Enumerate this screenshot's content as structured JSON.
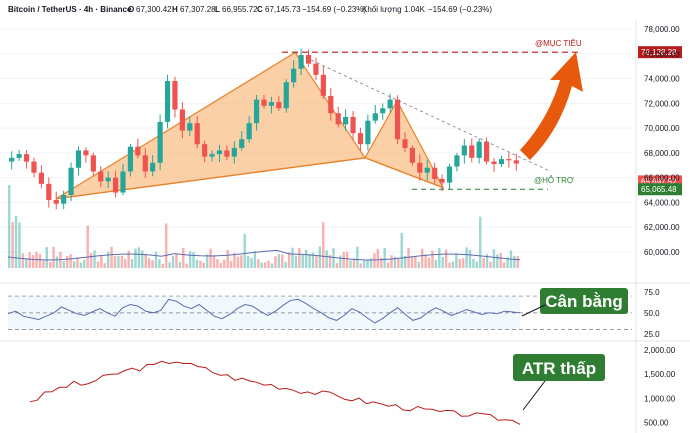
{
  "header": {
    "symbol": "Bitcoin / TetherUS · 4h · Binance",
    "o_label": "O",
    "o_value": "67,300.42",
    "h_label": "H",
    "h_value": "67,307.28",
    "l_label": "L",
    "l_value": "66,955.72",
    "c_label": "C",
    "c_value": "67,145.73",
    "change": "−154.69 (−0.23%)",
    "volume_label": "Khối lượng",
    "volume_value": "1.04K",
    "volume_change": "−154.69 (−0.23%)"
  },
  "colors": {
    "up": "#26a69a",
    "down": "#ef5350",
    "pattern_fill": "#f7a95c",
    "pattern_stroke": "#e8822a",
    "target": "#b71c1c",
    "support": "#2e7d32",
    "arrow": "#e65100",
    "badge": "#2e7d32",
    "rsi_line": "#5b6bb0",
    "atr_line": "#b71c1c",
    "volume_ma": "#5b6bb0"
  },
  "chart_data": [
    {
      "type": "candlestick",
      "panel": "price",
      "ylim": [
        58500,
        78000
      ],
      "y_ticks": [
        "78,000.00",
        "76,000.00",
        "74,000.00",
        "72,000.00",
        "70,000.00",
        "68,000.00",
        "66,000.00",
        "64,000.00",
        "62,000.00",
        "60,000.00"
      ],
      "last_price_labels": [
        "65,697.52",
        "65,065.48"
      ],
      "close_path": [
        67600,
        67900,
        67300,
        66400,
        65500,
        64200,
        63900,
        64600,
        66800,
        68200,
        67800,
        66500,
        65700,
        66000,
        64800,
        66500,
        68500,
        67800,
        66500,
        67200,
        70500,
        73800,
        71500,
        69800,
        70400,
        68700,
        67700,
        67900,
        68200,
        67700,
        68400,
        69100,
        70400,
        72300,
        71800,
        72100,
        71600,
        73700,
        74800,
        75900,
        75200,
        74300,
        72600,
        71200,
        70300,
        70900,
        69600,
        68700,
        70600,
        71200,
        71600,
        72300,
        69100,
        68400,
        67200,
        66400,
        66800,
        65900,
        65600,
        66900,
        67800,
        68600,
        67600,
        68900,
        67300,
        67100,
        67500,
        67400,
        67145
      ],
      "pattern_points": {
        "X": [
          56,
          64300
        ],
        "A": [
          295,
          76100
        ],
        "B": [
          365,
          67600
        ],
        "C": [
          397,
          72200
        ],
        "D": [
          443,
          65200
        ]
      },
      "target_label": "@MỤC TIÊU",
      "target_value": "76,128.28",
      "support_label": "@HỖ TRỢ",
      "support_value": 65065.48
    },
    {
      "type": "bar",
      "panel": "volume",
      "description_series": "volume"
    },
    {
      "type": "line",
      "panel": "rsi",
      "ylim": [
        20,
        82
      ],
      "y_ticks": [
        "75.0",
        "50.0",
        "25.0"
      ],
      "levels": [
        70,
        50,
        30
      ],
      "badge": "Cân bằng",
      "values": [
        49,
        52,
        46,
        44,
        42,
        46,
        50,
        57,
        53,
        49,
        47,
        51,
        55,
        50,
        46,
        56,
        60,
        58,
        52,
        50,
        53,
        66,
        64,
        58,
        55,
        60,
        53,
        46,
        43,
        48,
        55,
        60,
        58,
        52,
        47,
        52,
        59,
        65,
        66,
        61,
        55,
        50,
        44,
        41,
        47,
        55,
        51,
        44,
        38,
        43,
        50,
        56,
        48,
        41,
        44,
        51,
        56,
        52,
        47,
        50,
        54,
        51,
        48,
        50,
        49,
        52,
        51,
        50
      ]
    },
    {
      "type": "line",
      "panel": "atr",
      "ylim": [
        350,
        2100
      ],
      "y_ticks": [
        "2,000.00",
        "1,500.00",
        "1,000.00",
        "500.00"
      ],
      "badge": "ATR thấp",
      "values": [
        950,
        1000,
        1080,
        1150,
        1210,
        1260,
        1300,
        1280,
        1320,
        1370,
        1420,
        1470,
        1520,
        1560,
        1600,
        1620,
        1650,
        1670,
        1720,
        1760,
        1780,
        1740,
        1680,
        1640,
        1600,
        1550,
        1500,
        1460,
        1420,
        1390,
        1360,
        1330,
        1300,
        1280,
        1250,
        1220,
        1190,
        1160,
        1140,
        1120,
        1100,
        1080,
        1050,
        1020,
        990,
        960,
        930,
        910,
        880,
        860,
        840,
        820,
        800,
        780,
        760,
        740,
        720,
        700,
        690,
        680,
        670,
        650,
        630,
        610,
        590,
        560,
        540,
        520
      ]
    }
  ]
}
